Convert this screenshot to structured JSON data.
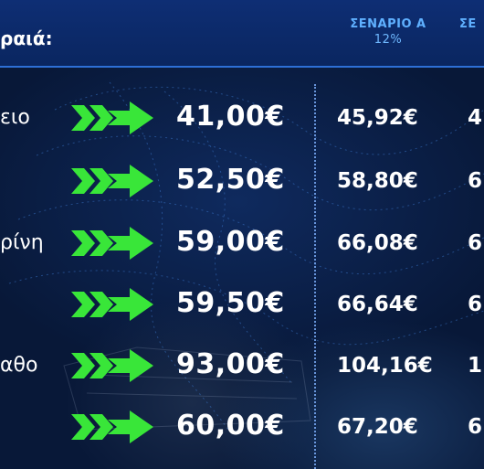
{
  "header": {
    "label": "ραιά:",
    "scenario_a_title": "ΣΕΝΑΡΙΟ Α",
    "scenario_a_pct": "12%",
    "scenario_b_title": "ΣΕ"
  },
  "colors": {
    "header_bg": "#0e2e74",
    "background": "#0a1a3a",
    "scenario_text": "#5fb0ff",
    "arrow_green": "#39e639",
    "text": "#ffffff"
  },
  "icons": {
    "row_marker": "double-chevron-arrow-icon"
  },
  "rows": [
    {
      "dest": "ειο",
      "price": "41,00€",
      "scenario_a": "45,92€",
      "scenario_b": "4"
    },
    {
      "dest": "",
      "price": "52,50€",
      "scenario_a": "58,80€",
      "scenario_b": "6"
    },
    {
      "dest": "ρίνη",
      "price": "59,00€",
      "scenario_a": "66,08€",
      "scenario_b": "6"
    },
    {
      "dest": "",
      "price": "59,50€",
      "scenario_a": "66,64€",
      "scenario_b": "6"
    },
    {
      "dest": "αθο",
      "price": "93,00€",
      "scenario_a": "104,16€",
      "scenario_b": "1"
    },
    {
      "dest": "",
      "price": "60,00€",
      "scenario_a": "67,20€",
      "scenario_b": "6"
    }
  ]
}
